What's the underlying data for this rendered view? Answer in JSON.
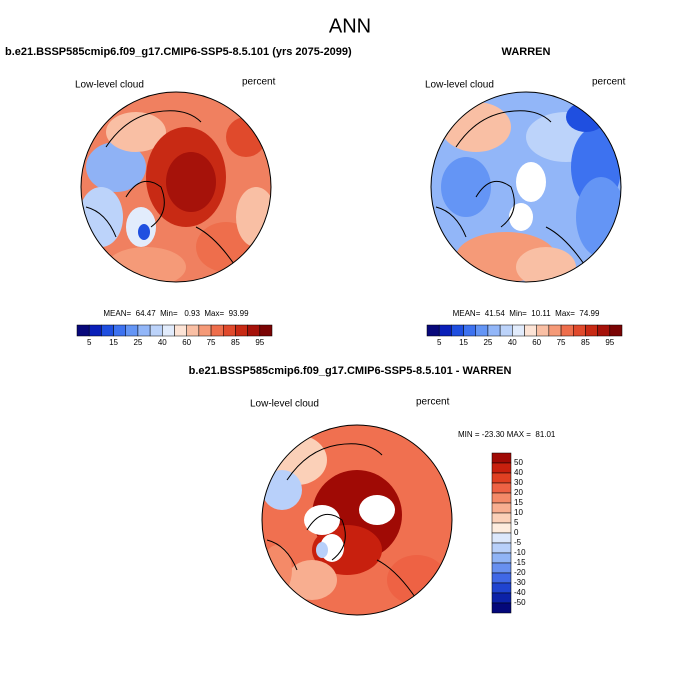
{
  "header": {
    "title": "ANN"
  },
  "panels": [
    {
      "title": "b.e21.BSSP585cmip6.f09_g17.CMIP6-SSP5-8.5.101 (yrs 2075-2099)",
      "field": "Low-level cloud",
      "units": "percent",
      "stats": "MEAN=  64.47  Min=   0.93  Max=  93.99"
    },
    {
      "title": "WARREN",
      "field": "Low-level cloud",
      "units": "percent",
      "stats": "MEAN=  41.54  Min=  10.11  Max=  74.99"
    },
    {
      "title": "b.e21.BSSP585cmip6.f09_g17.CMIP6-SSP5-8.5.101 - WARREN",
      "field": "Low-level cloud",
      "units": "percent",
      "stats": "MIN = -23.30 MAX =  81.01"
    }
  ],
  "colorbar_top": {
    "labels": [
      5,
      15,
      25,
      40,
      60,
      75,
      85,
      95
    ],
    "colors": [
      "#08087a",
      "#0a1fb8",
      "#1f4fe0",
      "#3d72f0",
      "#6495f5",
      "#92b6f8",
      "#bcd3fa",
      "#e2ecfc",
      "#fde4d6",
      "#f9bfa4",
      "#f59a78",
      "#ee6e4c",
      "#e04a2c",
      "#c82a14",
      "#a6120a",
      "#7a0404"
    ]
  },
  "colorbar_diff": {
    "labels": [
      50,
      40,
      30,
      20,
      15,
      10,
      5,
      0,
      -5,
      -10,
      -15,
      -20,
      -30,
      -40,
      -50
    ],
    "colors": [
      "#a00a05",
      "#c8200e",
      "#e04022",
      "#ee6244",
      "#f48a68",
      "#f8ae90",
      "#fbd0b8",
      "#fdecde",
      "#dce8fc",
      "#b8d0fa",
      "#90b4f6",
      "#6890f0",
      "#4068e6",
      "#2044d0",
      "#0c22a8",
      "#04087a"
    ]
  }
}
